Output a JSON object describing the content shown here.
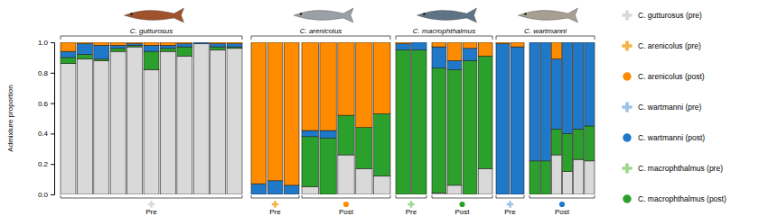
{
  "chart_data": {
    "type": "bar",
    "stacked": true,
    "y_label": "Admixture proportion",
    "ylim": [
      0,
      1
    ],
    "yticks": [
      {
        "value": 0,
        "label": "0.0"
      },
      {
        "value": 0.2,
        "label": "0.2"
      },
      {
        "value": 0.4,
        "label": "0.4"
      },
      {
        "value": 0.6,
        "label": "0.6"
      },
      {
        "value": 0.8,
        "label": "0.8"
      },
      {
        "value": 1,
        "label": "1.0"
      }
    ],
    "categories": [
      null,
      null,
      null,
      null,
      null,
      null,
      null,
      null,
      null,
      null,
      null,
      null,
      null,
      null,
      null,
      null,
      null,
      null,
      null,
      null,
      null,
      null,
      null,
      null,
      null,
      null,
      null,
      null,
      null,
      null,
      null,
      null,
      null
    ],
    "series": [
      {
        "color": "#d9d9d9",
        "values": [
          0.86,
          0.89,
          0.88,
          0.94,
          0.97,
          0.82,
          0.94,
          0.91,
          0.99,
          0.95,
          0.96,
          0,
          0,
          0,
          0.05,
          0,
          0.26,
          0.17,
          0.12,
          0,
          0,
          0.01,
          0.06,
          0,
          0.17,
          0,
          0,
          0,
          0,
          0.26,
          0.15,
          0.23,
          0.22
        ]
      },
      {
        "color": "#2ca02c",
        "values": [
          0.04,
          0.03,
          0.01,
          0.02,
          0.01,
          0.12,
          0.02,
          0.06,
          0,
          0.02,
          0.01,
          0,
          0,
          0,
          0.33,
          0.37,
          0.26,
          0.27,
          0.41,
          0.95,
          0.95,
          0.82,
          0.76,
          0.88,
          0.74,
          0,
          0,
          0.22,
          0.22,
          0.17,
          0.25,
          0.2,
          0.23
        ]
      },
      {
        "color": "#1f78c8",
        "values": [
          0.04,
          0.07,
          0.09,
          0.02,
          0.01,
          0.04,
          0.02,
          0.02,
          0.01,
          0.02,
          0.02,
          0.07,
          0.09,
          0.06,
          0.04,
          0.05,
          0,
          0,
          0,
          0.04,
          0.05,
          0.14,
          0.06,
          0.08,
          0,
          0.99,
          0.97,
          0.78,
          0.78,
          0.46,
          0.6,
          0.57,
          0.55
        ]
      },
      {
        "color": "#ff8c00",
        "values": [
          0.06,
          0.01,
          0.02,
          0.02,
          0.01,
          0.02,
          0.02,
          0.01,
          0,
          0.01,
          0.01,
          0.93,
          0.91,
          0.94,
          0.58,
          0.58,
          0.48,
          0.56,
          0.47,
          0.01,
          0,
          0.03,
          0.12,
          0.04,
          0.09,
          0.01,
          0.03,
          0,
          0,
          0.11,
          0,
          0,
          0
        ]
      }
    ],
    "groups": [
      {
        "title": "C. gutturosus",
        "color": "#a0522d",
        "periods": [
          {
            "label": "Pre",
            "marker": "cross",
            "color": "#d9d9d9",
            "n": 11
          }
        ]
      },
      {
        "title": "C. arenicolus",
        "color": "#9aa0a6",
        "periods": [
          {
            "label": "Pre",
            "marker": "cross",
            "color": "#f5b342",
            "n": 3
          },
          {
            "label": "Post",
            "marker": "dot",
            "color": "#ff8c00",
            "n": 5
          }
        ]
      },
      {
        "title": "C. macrophthalmus",
        "color": "#5f7387",
        "periods": [
          {
            "label": "Pre",
            "marker": "cross",
            "color": "#9fd88f",
            "n": 2
          },
          {
            "label": "Post",
            "marker": "dot",
            "color": "#2ca02c",
            "n": 4
          }
        ]
      },
      {
        "title": "C. wartmanni",
        "color": "#a89f92",
        "periods": [
          {
            "label": "Pre",
            "marker": "cross",
            "color": "#9cc3e6",
            "n": 2
          },
          {
            "label": "Post",
            "marker": "dot",
            "color": "#1f78c8",
            "n": 6
          }
        ]
      }
    ],
    "legend": "right",
    "legend_entries": [
      {
        "label": "C. gutturosus (pre)",
        "marker": "cross",
        "color": "#d9d9d9"
      },
      {
        "label": "C. arenicolus (pre)",
        "marker": "cross",
        "color": "#f5b342"
      },
      {
        "label": "C. arenicolus (post)",
        "marker": "dot",
        "color": "#ff8c00"
      },
      {
        "label": "C. wartmanni (pre)",
        "marker": "cross",
        "color": "#9cc3e6"
      },
      {
        "label": "C. wartmanni (post)",
        "marker": "dot",
        "color": "#1f78c8"
      },
      {
        "label": "C. macrophthalmus (pre)",
        "marker": "cross",
        "color": "#9fd88f"
      },
      {
        "label": "C. macrophthalmus (post)",
        "marker": "dot",
        "color": "#2ca02c"
      }
    ]
  }
}
